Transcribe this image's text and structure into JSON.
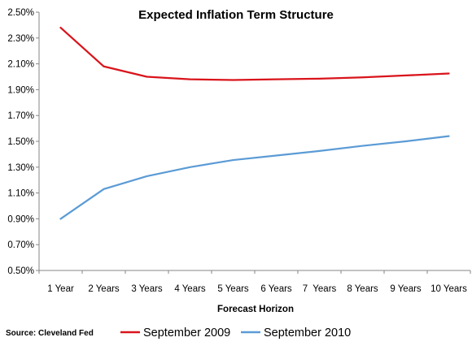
{
  "chart_data": {
    "type": "line",
    "title": "Expected Inflation Term Structure",
    "xlabel": "Forecast Horizon",
    "ylabel": "",
    "categories": [
      "1 Year",
      "2 Years",
      "3 Years",
      "4 Years",
      "5 Years",
      "6 Years",
      "7  Years",
      "8 Years",
      "9 Years",
      "10 Years"
    ],
    "y_ticks": [
      "0.50%",
      "0.70%",
      "0.90%",
      "1.10%",
      "1.30%",
      "1.50%",
      "1.70%",
      "1.90%",
      "2.10%",
      "2.30%",
      "2.50%"
    ],
    "ylim": [
      0.5,
      2.5
    ],
    "y_unit": "%",
    "grid": false,
    "legend_position": "bottom",
    "series": [
      {
        "name": "September 2009",
        "color": "#D9141B",
        "values": [
          2.38,
          2.08,
          2.0,
          1.98,
          1.975,
          1.98,
          1.985,
          1.995,
          2.01,
          2.025
        ]
      },
      {
        "name": "September 2010",
        "color": "#5B9BD5",
        "values": [
          0.9,
          1.13,
          1.23,
          1.3,
          1.355,
          1.39,
          1.425,
          1.465,
          1.5,
          1.54
        ]
      }
    ],
    "source": "Source: Cleveland Fed"
  }
}
